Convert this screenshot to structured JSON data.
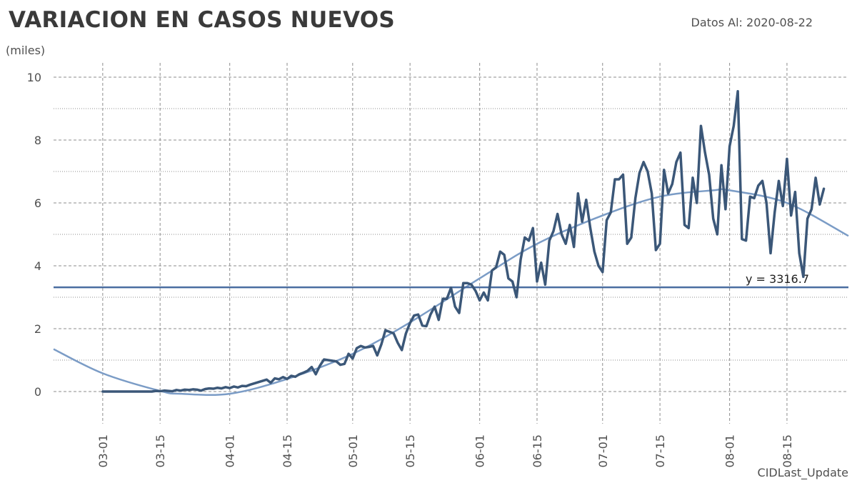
{
  "header": {
    "title": "VARIACION EN CASOS NUEVOS",
    "date_label": "Datos Al: 2020-08-22",
    "units": "(miles)",
    "x_axis_title": "CIDLast_Update"
  },
  "colors": {
    "series": "#3b5778",
    "trend": "#7b9cc6",
    "average": "#4a6da0",
    "grid": "#8c8c8c"
  },
  "chart_data": {
    "type": "line",
    "xlabel": "CIDLast_Update",
    "ylabel": "(miles)",
    "ylim": [
      0,
      10
    ],
    "xlim": [
      "2020-02-18",
      "2020-08-30"
    ],
    "yticks": [
      "0",
      "2",
      "4",
      "6",
      "8",
      "10"
    ],
    "xticks": [
      "03-01",
      "03-15",
      "04-01",
      "04-15",
      "05-01",
      "05-15",
      "06-01",
      "06-15",
      "07-01",
      "07-15",
      "08-01",
      "08-15"
    ],
    "average_line": {
      "value": 3.3167,
      "label": "y = 3316.7"
    },
    "trend": {
      "kind": "polynomial",
      "points": [
        [
          "2020-02-18",
          1.35
        ],
        [
          "2020-03-01",
          0.58
        ],
        [
          "2020-03-15",
          0.02
        ],
        [
          "2020-03-20",
          -0.07
        ],
        [
          "2020-04-01",
          -0.07
        ],
        [
          "2020-04-15",
          0.4
        ],
        [
          "2020-05-01",
          1.2
        ],
        [
          "2020-05-15",
          2.2
        ],
        [
          "2020-06-01",
          3.6
        ],
        [
          "2020-06-15",
          4.7
        ],
        [
          "2020-07-01",
          5.6
        ],
        [
          "2020-07-15",
          6.2
        ],
        [
          "2020-07-28",
          6.4
        ],
        [
          "2020-08-01",
          6.4
        ],
        [
          "2020-08-15",
          6.0
        ],
        [
          "2020-08-30",
          4.95
        ]
      ]
    },
    "series": [
      {
        "start": "2020-03-01",
        "values": [
          0,
          0,
          0,
          0,
          0,
          0,
          0,
          0,
          0,
          0,
          0,
          0,
          0,
          0.02,
          0.01,
          0.03,
          0.02,
          0.01,
          0.05,
          0.03,
          0.06,
          0.05,
          0.07,
          0.06,
          0.03,
          0.08,
          0.1,
          0.09,
          0.12,
          0.1,
          0.14,
          0.11,
          0.16,
          0.13,
          0.18,
          0.17,
          0.22,
          0.26,
          0.3,
          0.34,
          0.38,
          0.28,
          0.42,
          0.39,
          0.46,
          0.4,
          0.5,
          0.47,
          0.55,
          0.6,
          0.66,
          0.78,
          0.55,
          0.82,
          1.02,
          1.0,
          0.98,
          0.96,
          0.85,
          0.88,
          1.2,
          1.05,
          1.38,
          1.45,
          1.4,
          1.42,
          1.45,
          1.15,
          1.5,
          1.95,
          1.9,
          1.85,
          1.55,
          1.32,
          1.85,
          2.18,
          2.42,
          2.45,
          2.1,
          2.08,
          2.45,
          2.7,
          2.28,
          2.95,
          2.95,
          3.3,
          2.7,
          2.5,
          3.45,
          3.45,
          3.4,
          3.2,
          2.9,
          3.15,
          2.9,
          3.85,
          3.95,
          4.45,
          4.35,
          3.6,
          3.5,
          3.0,
          4.2,
          4.9,
          4.8,
          5.2,
          3.5,
          4.1,
          3.4,
          4.8,
          5.1,
          5.65,
          5.0,
          4.7,
          5.3,
          4.6,
          6.3,
          5.4,
          6.1,
          5.2,
          4.45,
          4.0,
          3.8,
          5.45,
          5.7,
          6.75,
          6.75,
          6.9,
          4.7,
          4.9,
          6.15,
          6.95,
          7.3,
          7.0,
          6.3,
          4.5,
          4.7,
          7.05,
          6.3,
          6.6,
          7.3,
          7.6,
          5.3,
          5.2,
          6.8,
          6.0,
          8.45,
          7.6,
          6.9,
          5.5,
          5.0,
          7.2,
          5.8,
          7.8,
          8.45,
          9.55,
          4.85,
          4.8,
          6.2,
          6.15,
          6.55,
          6.7,
          6.0,
          4.4,
          5.7,
          6.7,
          5.9,
          7.4,
          5.6,
          6.35,
          4.4,
          3.65,
          5.5,
          5.8,
          6.8,
          5.95,
          6.45
        ]
      }
    ]
  }
}
